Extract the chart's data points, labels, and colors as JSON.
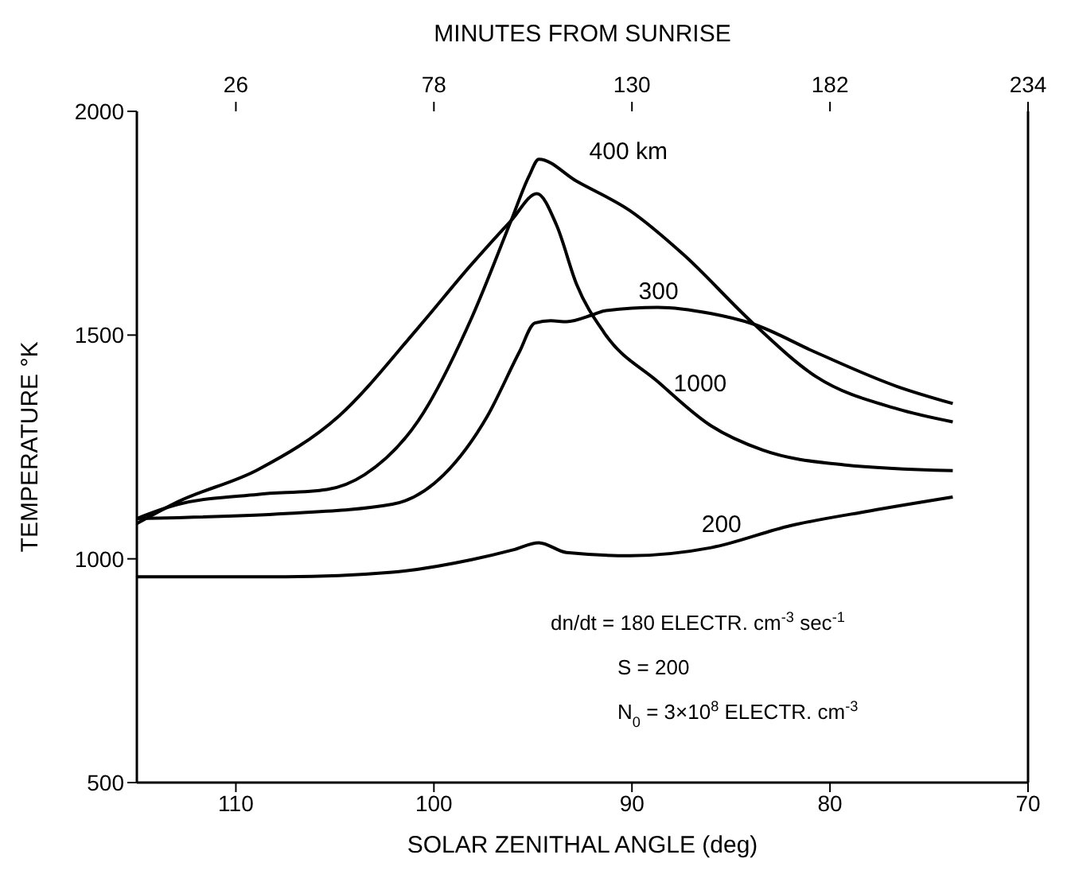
{
  "chart_data": {
    "type": "line",
    "xlabel": "SOLAR ZENITHAL ANGLE (deg)",
    "x2label": "MINUTES FROM SUNRISE",
    "ylabel": "TEMPERATURE °K",
    "xlim": [
      115,
      70
    ],
    "xticks": [
      110,
      100,
      90,
      80,
      70
    ],
    "x2lim": [
      0,
      234
    ],
    "x2ticks": [
      26,
      78,
      130,
      182,
      234
    ],
    "ylim": [
      500,
      2000
    ],
    "yticks": [
      500,
      1000,
      1500,
      2000
    ],
    "marker": "none",
    "line_style": "solid",
    "series": [
      {
        "name": "400 km",
        "color": "#000000",
        "x": [
          115,
          112.9,
          108.9,
          105.4,
          103.5,
          100.8,
          98.1,
          96.1,
          95.2,
          94.7,
          92.8,
          90.1,
          87.4,
          83.9,
          80.7,
          76.6,
          73.8
        ],
        "values": [
          1090,
          1122,
          1144,
          1155,
          1188,
          1308,
          1538,
          1756,
          1855,
          1893,
          1844,
          1778,
          1680,
          1527,
          1407,
          1335,
          1306
        ]
      },
      {
        "name": "300",
        "color": "#000000",
        "x": [
          115,
          112.9,
          107.5,
          102.1,
          99.5,
          97.3,
          95.7,
          94.9,
          94.1,
          93.3,
          92.0,
          91.4,
          88.7,
          86.0,
          83.9,
          80.7,
          76.6,
          73.8
        ],
        "values": [
          1090,
          1092,
          1101,
          1122,
          1188,
          1319,
          1461,
          1527,
          1532,
          1530,
          1545,
          1554,
          1562,
          1548,
          1525,
          1461,
          1385,
          1347
        ]
      },
      {
        "name": "1000",
        "color": "#000000",
        "x": [
          115,
          112.9,
          108.9,
          104.8,
          100.8,
          98.1,
          96.1,
          94.8,
          93.8,
          92.8,
          91.4,
          88.7,
          86.0,
          83.4,
          79.3,
          73.8
        ],
        "values": [
          1079,
          1128,
          1199,
          1319,
          1516,
          1658,
          1756,
          1816,
          1745,
          1614,
          1505,
          1396,
          1297,
          1243,
          1210,
          1197
        ]
      },
      {
        "name": "200",
        "color": "#000000",
        "x": [
          115,
          107.5,
          102.1,
          98.1,
          96.0,
          94.7,
          93.3,
          90.1,
          86.0,
          82.0,
          78.0,
          73.8
        ],
        "values": [
          960,
          960,
          970,
          998,
          1020,
          1036,
          1014,
          1007,
          1025,
          1074,
          1107,
          1138
        ]
      }
    ],
    "annotations": [
      "dn/dt = 180 ELECTR. cm$^{-3}$ sec$^{-1}$",
      "S = 200",
      "N$_{0}$ = 3×10$^{8}$ ELECTR. cm$^{-3}$"
    ]
  }
}
